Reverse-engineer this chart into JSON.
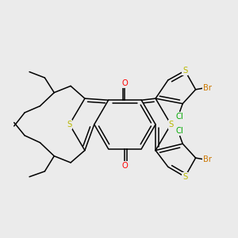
{
  "background_color": "#ebebeb",
  "bond_color": "#000000",
  "S_color": "#b8b800",
  "O_color": "#ff0000",
  "Br_color": "#cc7700",
  "Cl_color": "#00aa00",
  "bond_width": 1.1,
  "figsize": [
    3.0,
    3.0
  ],
  "dpi": 100,
  "xlim": [
    0,
    10
  ],
  "ylim": [
    0,
    10
  ]
}
